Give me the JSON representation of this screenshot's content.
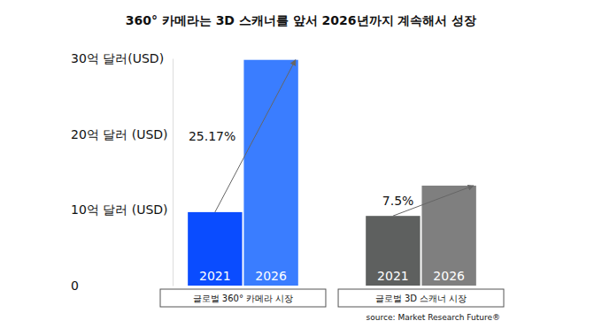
{
  "chart_data": {
    "type": "bar",
    "title": "360° 카메라는 3D 스캐너를 앞서 2026년까지 계속해서 성장",
    "categories": [
      "글로벌 360° 카메라 시장",
      "글로벌 3D 스캐너 시장"
    ],
    "series": [
      {
        "name": "2021",
        "colors": [
          "#0a4cff",
          "#5e605f"
        ],
        "values": [
          9.7,
          9.2
        ]
      },
      {
        "name": "2026",
        "colors": [
          "#3a7dff",
          "#7f7f7f"
        ],
        "values": [
          29.8,
          13.2
        ]
      }
    ],
    "annotations": [
      "25.17%",
      "7.5%"
    ],
    "source": "source: Market Research Future®",
    "ylim": [
      0,
      30
    ],
    "yticks": [
      0,
      {
        "value": 10,
        "label": "10억 달러 (USD)"
      },
      {
        "value": 20,
        "label": "20억 달러 (USD)"
      },
      {
        "value": 30,
        "label": "30억 달러(USD)"
      }
    ]
  }
}
